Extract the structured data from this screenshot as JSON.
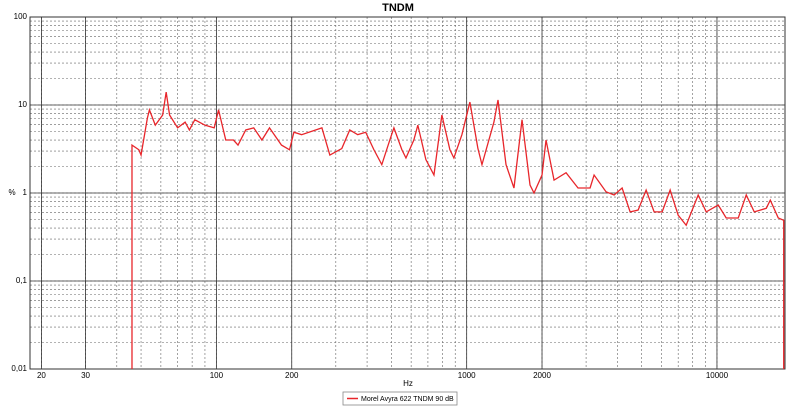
{
  "chart_data": {
    "type": "line",
    "title": "TNDM",
    "x_label": "Hz",
    "y_label": "%",
    "log_x": true,
    "log_y": true,
    "grid": true,
    "minor_grid": true,
    "legend": "bottom",
    "xlim": [
      18,
      18700
    ],
    "ylim": [
      0.01,
      100
    ],
    "xticks": [
      20,
      30,
      100,
      200,
      1000,
      2000,
      10000
    ],
    "yticks": [
      {
        "value": 0.01,
        "label": "0,01"
      },
      {
        "value": 0.1,
        "label": "0,1"
      },
      1,
      10,
      100
    ],
    "x": [
      46,
      46,
      49,
      50,
      53,
      54,
      57,
      61,
      63,
      65,
      70,
      75,
      78,
      82,
      90,
      98,
      102,
      109,
      117,
      122,
      131,
      141,
      152,
      163,
      182,
      196,
      204,
      219,
      264,
      284,
      317,
      341,
      367,
      395,
      426,
      458,
      493,
      512,
      551,
      572,
      615,
      638,
      687,
      740,
      796,
      857,
      889,
      957,
      1030,
      1109,
      1151,
      1285,
      1334,
      1436,
      1545,
      1664,
      1791,
      1858,
      2000,
      2075,
      2234,
      2495,
      2786,
      3112,
      3229,
      3606,
      3882,
      4179,
      4498,
      4842,
      5212,
      5610,
      6040,
      6501,
      6998,
      7534,
      8110,
      8414,
      9057,
      10116,
      10889,
      12162,
      13092,
      14093,
      15740,
      16332,
      17580,
      18480,
      18480
    ],
    "series": [
      {
        "name": "Morel Avyra 622 TNDM 90 dB",
        "color": "#e8262b",
        "values": [
          0.01,
          3.5,
          3.1,
          2.7,
          7.1,
          8.8,
          5.9,
          7.7,
          14,
          7.7,
          5.5,
          6.4,
          5.2,
          6.8,
          5.9,
          5.5,
          8.8,
          4.0,
          4.0,
          3.5,
          5.2,
          5.5,
          4.0,
          5.5,
          3.5,
          3.1,
          4.9,
          4.6,
          5.5,
          2.7,
          3.2,
          5.2,
          4.6,
          4.9,
          3.1,
          2.1,
          4.0,
          5.5,
          3.1,
          2.5,
          4.0,
          5.9,
          2.4,
          1.6,
          7.7,
          3.1,
          2.5,
          4.6,
          10.8,
          3.2,
          2.1,
          6.4,
          11.4,
          2.1,
          1.14,
          6.8,
          1.23,
          1.0,
          1.6,
          4.0,
          1.4,
          1.7,
          1.14,
          1.14,
          1.6,
          1.03,
          0.95,
          1.14,
          0.61,
          0.64,
          1.08,
          0.61,
          0.61,
          1.08,
          0.56,
          0.43,
          0.73,
          0.95,
          0.61,
          0.73,
          0.52,
          0.52,
          0.95,
          0.61,
          0.67,
          0.83,
          0.52,
          0.49,
          0.01
        ]
      }
    ]
  }
}
